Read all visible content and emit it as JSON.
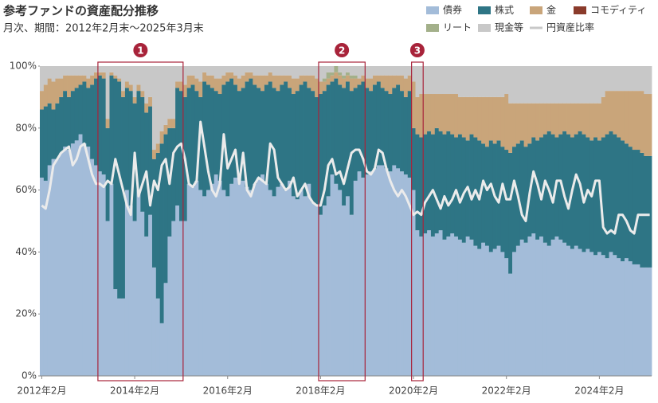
{
  "chart_data": {
    "type": "stacked-area-bar",
    "title": "参考ファンドの資産配分推移",
    "subtitle": "月次、期間：2012年2月末～2025年3月末",
    "categories": [
      "2012年2月",
      null,
      null,
      null,
      null,
      null,
      null,
      null,
      null,
      null,
      null,
      null,
      null,
      null,
      null,
      null,
      null,
      null,
      null,
      null,
      null,
      null,
      null,
      null,
      "2014年2月",
      null,
      null,
      null,
      null,
      null,
      null,
      null,
      null,
      null,
      null,
      null,
      null,
      null,
      null,
      null,
      null,
      null,
      null,
      null,
      null,
      null,
      null,
      null,
      "2016年2月",
      null,
      null,
      null,
      null,
      null,
      null,
      null,
      null,
      null,
      null,
      null,
      null,
      null,
      null,
      null,
      null,
      null,
      null,
      null,
      null,
      null,
      null,
      null,
      "2018年2月",
      null,
      null,
      null,
      null,
      null,
      null,
      null,
      null,
      null,
      null,
      null,
      null,
      null,
      null,
      null,
      null,
      null,
      null,
      null,
      null,
      null,
      null,
      null,
      "2020年2月",
      null,
      null,
      null,
      null,
      null,
      null,
      null,
      null,
      null,
      null,
      null,
      null,
      null,
      null,
      null,
      null,
      null,
      null,
      null,
      null,
      null,
      null,
      null,
      "2022年2月",
      null,
      null,
      null,
      null,
      null,
      null,
      null,
      null,
      null,
      null,
      null,
      null,
      null,
      null,
      null,
      null,
      null,
      null,
      null,
      null,
      null,
      null,
      null,
      "2024年2月",
      null,
      null,
      null,
      null,
      null,
      null,
      null,
      null,
      null,
      null,
      null,
      null,
      null
    ],
    "series": [
      {
        "name": "債券",
        "color": "#a3bcd9",
        "values": [
          64,
          63,
          68,
          70,
          70,
          72,
          74,
          73,
          75,
          76,
          78,
          75,
          74,
          70,
          68,
          66,
          65,
          50,
          62,
          28,
          25,
          25,
          60,
          55,
          50,
          60,
          53,
          45,
          52,
          35,
          25,
          17,
          30,
          45,
          50,
          55,
          50,
          50,
          62,
          61,
          63,
          60,
          58,
          60,
          62,
          65,
          63,
          60,
          58,
          62,
          64,
          65,
          63,
          61,
          60,
          62,
          64,
          65,
          62,
          60,
          58,
          61,
          62,
          60,
          63,
          58,
          57,
          60,
          58,
          62,
          56,
          55,
          52,
          55,
          58,
          65,
          62,
          60,
          55,
          58,
          52,
          63,
          66,
          64,
          65,
          66,
          67,
          68,
          68,
          67,
          66,
          68,
          67,
          66,
          65,
          64,
          60,
          47,
          45,
          46,
          47,
          45,
          46,
          47,
          44,
          45,
          46,
          45,
          44,
          43,
          45,
          44,
          42,
          41,
          43,
          42,
          40,
          41,
          42,
          40,
          38,
          33,
          40,
          42,
          44,
          43,
          45,
          46,
          44,
          45,
          43,
          42,
          44,
          45,
          44,
          43,
          42,
          41,
          42,
          41,
          40,
          41,
          40,
          39,
          40,
          39,
          38,
          40,
          39,
          38,
          37,
          38,
          37,
          36,
          36,
          35,
          35,
          35
        ]
      },
      {
        "name": "株式",
        "color": "#2e7585",
        "values": [
          22,
          24,
          20,
          16,
          18,
          18,
          18,
          17,
          17,
          17,
          16,
          20,
          19,
          24,
          28,
          31,
          31,
          30,
          35,
          68,
          70,
          65,
          33,
          37,
          38,
          32,
          37,
          40,
          35,
          35,
          47,
          58,
          48,
          35,
          30,
          38,
          42,
          40,
          31,
          33,
          29,
          30,
          37,
          34,
          31,
          27,
          28,
          34,
          37,
          34,
          30,
          27,
          30,
          34,
          36,
          32,
          29,
          27,
          32,
          35,
          35,
          31,
          32,
          35,
          30,
          33,
          35,
          34,
          37,
          31,
          36,
          35,
          39,
          37,
          36,
          30,
          34,
          34,
          38,
          37,
          40,
          30,
          28,
          31,
          28,
          26,
          27,
          27,
          25,
          25,
          25,
          25,
          27,
          26,
          25,
          28,
          20,
          31,
          32,
          32,
          32,
          33,
          34,
          32,
          34,
          34,
          32,
          32,
          34,
          34,
          31,
          34,
          35,
          35,
          32,
          32,
          36,
          34,
          34,
          34,
          35,
          39,
          34,
          33,
          32,
          31,
          30,
          31,
          32,
          32,
          35,
          37,
          34,
          32,
          34,
          36,
          36,
          36,
          36,
          38,
          38,
          36,
          36,
          38,
          36,
          38,
          40,
          39,
          39,
          39,
          39,
          37,
          37,
          37,
          37,
          37,
          36,
          36
        ]
      },
      {
        "name": "金",
        "color": "#c9a57a",
        "values": [
          6,
          7,
          8,
          9,
          8,
          6,
          5,
          7,
          5,
          4,
          3,
          2,
          3,
          3,
          2,
          1,
          2,
          3,
          1,
          1,
          1,
          2,
          2,
          2,
          2,
          2,
          2,
          3,
          3,
          3,
          3,
          4,
          3,
          3,
          3,
          2,
          3,
          4,
          4,
          3,
          4,
          5,
          3,
          3,
          4,
          4,
          5,
          3,
          3,
          2,
          3,
          4,
          4,
          3,
          2,
          3,
          4,
          5,
          3,
          3,
          4,
          5,
          3,
          2,
          4,
          5,
          4,
          3,
          2,
          4,
          5,
          6,
          4,
          3,
          2,
          2,
          2,
          3,
          3,
          2,
          4,
          3,
          2,
          2,
          3,
          4,
          3,
          2,
          4,
          5,
          6,
          4,
          3,
          5,
          6,
          5,
          15,
          12,
          14,
          13,
          12,
          13,
          11,
          12,
          13,
          12,
          13,
          14,
          12,
          13,
          14,
          12,
          13,
          14,
          15,
          16,
          14,
          15,
          14,
          16,
          18,
          16,
          14,
          13,
          12,
          14,
          13,
          11,
          12,
          11,
          10,
          9,
          10,
          11,
          10,
          9,
          10,
          11,
          10,
          9,
          10,
          11,
          12,
          11,
          12,
          13,
          14,
          13,
          14,
          15,
          16,
          17,
          18,
          19,
          19,
          20,
          20,
          20
        ]
      },
      {
        "name": "コモディティ",
        "color": "#8a3b2b",
        "values": [
          0,
          0,
          0,
          0,
          0,
          0,
          0,
          0,
          0,
          0,
          0,
          0,
          0,
          0,
          0,
          0,
          0,
          0,
          0,
          0,
          0,
          0,
          0,
          0,
          0,
          0,
          0,
          0,
          0,
          0,
          0,
          0,
          0,
          0,
          0,
          0,
          0,
          0,
          0,
          0,
          0,
          0,
          0,
          0,
          0,
          0,
          0,
          0,
          0,
          0,
          0,
          0,
          0,
          0,
          0,
          0,
          0,
          0,
          0,
          0,
          0,
          0,
          0,
          0,
          0,
          0,
          0,
          0,
          0,
          0,
          0,
          0,
          0,
          0,
          0,
          0,
          0,
          0,
          0,
          0,
          0,
          0,
          0,
          0,
          0,
          0,
          0,
          0,
          0,
          0,
          0,
          0,
          0,
          0,
          0,
          0,
          0,
          0,
          0,
          0,
          0,
          0,
          0,
          0,
          0,
          0,
          0,
          0,
          0,
          0,
          0,
          0,
          0,
          0,
          0,
          0,
          0,
          0,
          0,
          0,
          0,
          0,
          0,
          0,
          0,
          0,
          0,
          0,
          0,
          0,
          0,
          0,
          0,
          0,
          0,
          0,
          0,
          0,
          0,
          0,
          0,
          0,
          0,
          0,
          0,
          0,
          0,
          0,
          0,
          0,
          0,
          0,
          0,
          0,
          0,
          0,
          0,
          0
        ]
      },
      {
        "name": "リート",
        "color": "#a3b08a",
        "values": [
          0,
          0,
          0,
          0,
          0,
          0,
          0,
          0,
          0,
          0,
          0,
          0,
          0,
          0,
          0,
          0,
          0,
          0,
          0,
          0,
          0,
          0,
          0,
          0,
          0,
          0,
          0,
          0,
          0,
          0,
          0,
          0,
          0,
          0,
          0,
          0,
          0,
          0,
          0,
          0,
          0,
          0,
          0,
          0,
          0,
          0,
          0,
          0,
          0,
          0,
          0,
          0,
          0,
          0,
          0,
          0,
          0,
          0,
          0,
          0,
          0,
          0,
          0,
          0,
          0,
          0,
          0,
          0,
          0,
          0,
          0,
          0,
          0,
          1,
          2,
          1,
          2,
          1,
          1,
          1,
          1,
          1,
          0,
          0,
          0,
          0,
          0,
          0,
          0,
          0,
          0,
          0,
          0,
          0,
          0,
          0,
          0,
          0,
          0,
          0,
          0,
          0,
          0,
          0,
          0,
          0,
          0,
          0,
          0,
          0,
          0,
          0,
          0,
          0,
          0,
          0,
          0,
          0,
          0,
          0,
          0,
          0,
          0,
          0,
          0,
          0,
          0,
          0,
          0,
          0,
          0,
          0,
          0,
          0,
          0,
          0,
          0,
          0,
          0,
          0,
          0,
          0,
          0,
          0,
          0,
          0,
          0,
          0,
          0,
          0,
          0,
          0,
          0,
          0,
          0,
          0,
          0,
          0
        ]
      },
      {
        "name": "現金等",
        "color": "#c8c8c8",
        "values": [
          8,
          6,
          4,
          5,
          4,
          4,
          3,
          3,
          3,
          3,
          3,
          3,
          4,
          3,
          2,
          2,
          2,
          17,
          2,
          3,
          4,
          8,
          5,
          6,
          10,
          6,
          8,
          12,
          10,
          27,
          25,
          21,
          19,
          17,
          17,
          5,
          5,
          6,
          3,
          3,
          4,
          5,
          2,
          3,
          3,
          4,
          4,
          3,
          2,
          2,
          3,
          4,
          3,
          2,
          2,
          3,
          3,
          3,
          3,
          2,
          3,
          3,
          3,
          3,
          3,
          4,
          4,
          3,
          3,
          3,
          3,
          4,
          5,
          4,
          2,
          2,
          0,
          2,
          3,
          2,
          3,
          3,
          4,
          3,
          4,
          4,
          3,
          3,
          3,
          3,
          3,
          3,
          3,
          3,
          4,
          3,
          5,
          10,
          9,
          9,
          9,
          9,
          9,
          9,
          9,
          9,
          9,
          9,
          10,
          10,
          10,
          10,
          10,
          10,
          10,
          10,
          10,
          10,
          10,
          10,
          9,
          12,
          12,
          12,
          12,
          12,
          12,
          12,
          12,
          12,
          12,
          12,
          12,
          12,
          12,
          12,
          12,
          12,
          12,
          12,
          12,
          12,
          12,
          12,
          12,
          10,
          8,
          8,
          8,
          8,
          8,
          8,
          8,
          8,
          8,
          8,
          9,
          9
        ]
      }
    ],
    "line": {
      "name": "円資産比率",
      "color": "#ebebeb",
      "values": [
        55,
        54,
        60,
        68,
        70,
        72,
        73,
        74,
        68,
        70,
        74,
        75,
        70,
        65,
        62,
        62,
        61,
        63,
        62,
        70,
        65,
        60,
        55,
        52,
        72,
        58,
        62,
        66,
        55,
        63,
        60,
        68,
        70,
        62,
        72,
        74,
        75,
        70,
        62,
        61,
        63,
        82,
        74,
        66,
        60,
        58,
        62,
        78,
        67,
        70,
        73,
        62,
        72,
        60,
        58,
        62,
        64,
        63,
        62,
        75,
        73,
        64,
        62,
        60,
        61,
        64,
        58,
        60,
        62,
        58,
        56,
        55,
        55,
        60,
        68,
        70,
        65,
        66,
        62,
        67,
        72,
        73,
        73,
        70,
        66,
        65,
        67,
        73,
        72,
        67,
        63,
        60,
        58,
        60,
        58,
        55,
        52,
        53,
        52,
        56,
        58,
        60,
        57,
        54,
        58,
        55,
        57,
        60,
        56,
        59,
        61,
        57,
        60,
        57,
        63,
        60,
        62,
        58,
        56,
        62,
        57,
        57,
        63,
        58,
        52,
        50,
        59,
        66,
        62,
        57,
        63,
        60,
        56,
        63,
        63,
        58,
        54,
        60,
        65,
        62,
        56,
        60,
        58,
        63,
        63,
        48,
        46,
        47,
        46,
        52,
        52,
        50,
        47,
        46,
        52,
        52,
        52,
        52
      ]
    },
    "highlights": [
      {
        "label": "1",
        "from": 15,
        "to": 36
      },
      {
        "label": "2",
        "from": 72,
        "to": 83
      },
      {
        "label": "3",
        "from": 96,
        "to": 98
      }
    ],
    "highlight_color": "#a8233a",
    "ylim": [
      0,
      100
    ],
    "yticks": [
      {
        "value": 0,
        "label": "0%"
      },
      {
        "value": 20,
        "label": "20%"
      },
      {
        "value": 40,
        "label": "40%"
      },
      {
        "value": 60,
        "label": "60%"
      },
      {
        "value": 80,
        "label": "80%"
      },
      {
        "value": 100,
        "label": "100%"
      }
    ]
  }
}
